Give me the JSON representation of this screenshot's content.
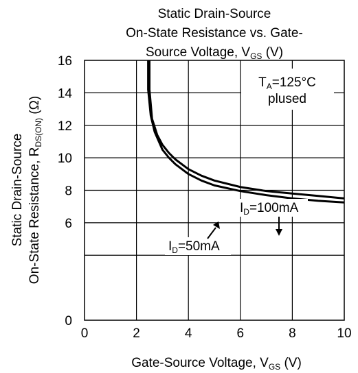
{
  "chart_data": {
    "type": "line",
    "title": {
      "line1": "Static Drain-Source",
      "line2": "On-State Resistance vs. Gate-",
      "line3_main": "Source Voltage, V",
      "line3_sub": "GS",
      "line3_tail": " (V)"
    },
    "xlabel": {
      "main": "Gate-Source Voltage, V",
      "sub": "GS",
      "tail": " (V)"
    },
    "ylabel": {
      "line1": "Static Drain-Source",
      "line2_main": "On-State Resistance,  R",
      "line2_sub": "DS(ON)",
      "line2_tail": " (Ω)"
    },
    "xlim": [
      0,
      10
    ],
    "ylim": [
      0,
      16
    ],
    "xticks": [
      "0",
      "2",
      "4",
      "6",
      "8",
      "10"
    ],
    "yticks": [
      "0",
      "6",
      "8",
      "10",
      "12",
      "14",
      "16"
    ],
    "ytick_values": [
      0,
      6,
      8,
      10,
      12,
      14,
      16
    ],
    "grid": true,
    "condition": {
      "t_main": "T",
      "t_sub": "A",
      "t_tail": "=125°C",
      "line2": "plused"
    },
    "series": [
      {
        "name_main": "I",
        "name_sub": "D",
        "name_tail": "=100mA",
        "x": [
          2.5,
          2.6,
          2.8,
          3.0,
          3.25,
          3.5,
          4.0,
          4.5,
          5.0,
          6.0,
          7.0,
          8.0,
          9.0,
          10.0
        ],
        "y": [
          14.2,
          12.4,
          11.4,
          10.8,
          10.3,
          9.9,
          9.3,
          8.9,
          8.6,
          8.2,
          7.95,
          7.8,
          7.65,
          7.5
        ]
      },
      {
        "name_main": "I",
        "name_sub": "D",
        "name_tail": "=50mA",
        "x": [
          2.45,
          2.55,
          2.7,
          3.0,
          3.25,
          3.5,
          4.0,
          4.5,
          5.0,
          6.0,
          7.0,
          8.0,
          9.0,
          10.0
        ],
        "y": [
          14.2,
          12.6,
          11.6,
          10.5,
          10.0,
          9.6,
          9.0,
          8.6,
          8.3,
          7.95,
          7.7,
          7.5,
          7.35,
          7.25
        ]
      }
    ]
  }
}
